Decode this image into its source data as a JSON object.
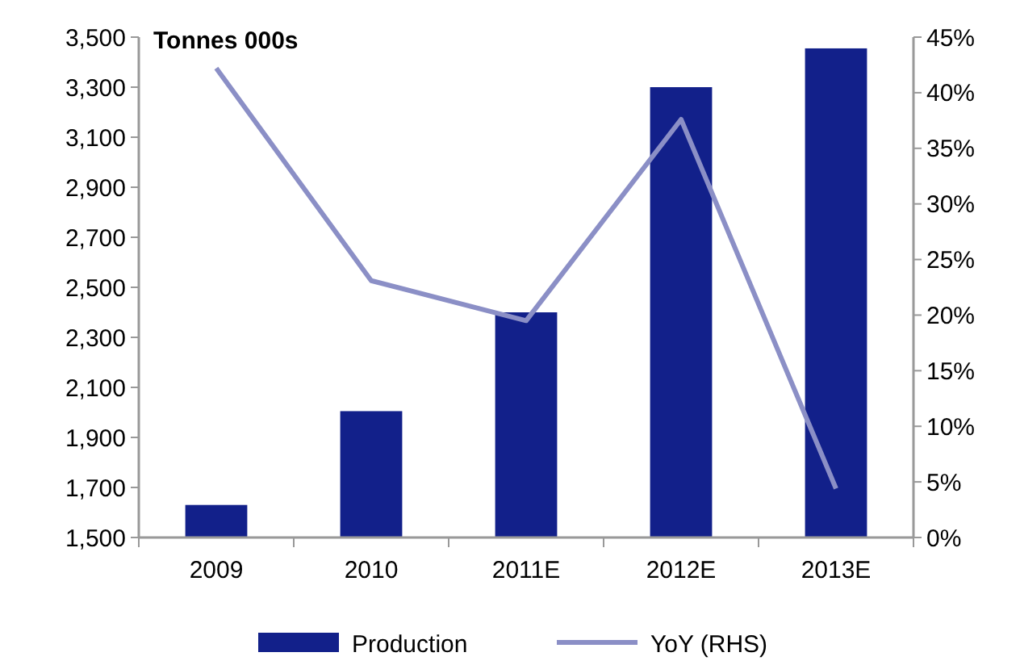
{
  "chart_data": {
    "type": "bar",
    "ylabel": "Tonnes 000s",
    "categories": [
      "2009",
      "2010",
      "2011E",
      "2012E",
      "2013E"
    ],
    "series": [
      {
        "name": "Production",
        "color": "#12208a",
        "values": [
          1630,
          2005,
          2400,
          3300,
          3455
        ]
      },
      {
        "name": "YoY (RHS)",
        "type": "line",
        "axis": "y2",
        "color": "#8b8fc6",
        "values": [
          42.2,
          23.1,
          19.5,
          37.6,
          4.4
        ]
      }
    ],
    "ylim": [
      1500,
      3500
    ],
    "yticks": [
      {
        "value": 1500,
        "label": "1,500"
      },
      {
        "value": 1700,
        "label": "1,700"
      },
      {
        "value": 1900,
        "label": "1,900"
      },
      {
        "value": 2100,
        "label": "2,100"
      },
      {
        "value": 2300,
        "label": "2,300"
      },
      {
        "value": 2500,
        "label": "2,500"
      },
      {
        "value": 2700,
        "label": "2,700"
      },
      {
        "value": 2900,
        "label": "2,900"
      },
      {
        "value": 3100,
        "label": "3,100"
      },
      {
        "value": 3300,
        "label": "3,300"
      },
      {
        "value": 3500,
        "label": "3,500"
      }
    ],
    "y2lim": [
      0,
      45
    ],
    "y2ticks": [
      {
        "value": 0,
        "label": "0%"
      },
      {
        "value": 5,
        "label": "5%"
      },
      {
        "value": 10,
        "label": "10%"
      },
      {
        "value": 15,
        "label": "15%"
      },
      {
        "value": 20,
        "label": "20%"
      },
      {
        "value": 25,
        "label": "25%"
      },
      {
        "value": 30,
        "label": "30%"
      },
      {
        "value": 35,
        "label": "35%"
      },
      {
        "value": 40,
        "label": "40%"
      },
      {
        "value": 45,
        "label": "45%"
      }
    ],
    "grid": false,
    "legend": "bottom",
    "marker": "none",
    "line_style": "solid"
  }
}
